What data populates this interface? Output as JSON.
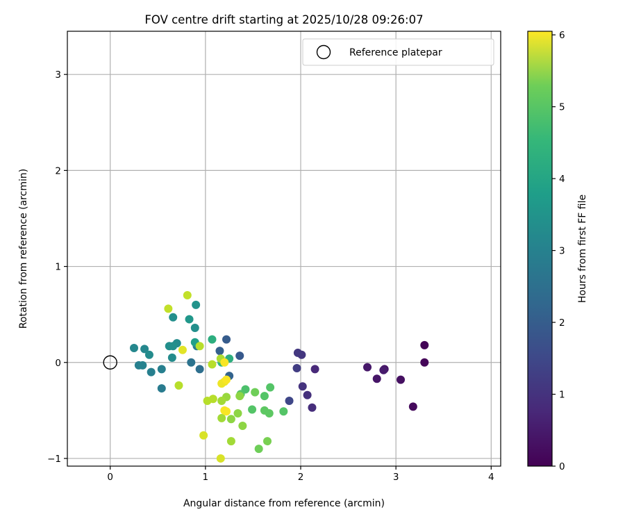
{
  "chart_data": {
    "type": "scatter",
    "title": "FOV centre drift starting at 2025/10/28 09:26:07",
    "xlabel": "Angular distance from reference (arcmin)",
    "ylabel": "Rotation from reference (arcmin)",
    "xlim": [
      -0.45,
      4.1
    ],
    "ylim": [
      -1.08,
      3.45
    ],
    "xticks": [
      0,
      1,
      2,
      3,
      4
    ],
    "yticks": [
      -1,
      0,
      1,
      2,
      3
    ],
    "xtick_labels": [
      "0",
      "1",
      "2",
      "3",
      "4"
    ],
    "ytick_labels": [
      "−1",
      "0",
      "1",
      "2",
      "3"
    ],
    "grid": true,
    "legend": {
      "location": "top-right",
      "label": "Reference platepar",
      "marker": "open-circle"
    },
    "reference_point": {
      "x": 0,
      "y": 0
    },
    "colorbar": {
      "label": "Hours from first FF file",
      "colormap": "viridis",
      "range": [
        0,
        6.05
      ],
      "ticks": [
        0,
        1,
        2,
        3,
        4,
        5,
        6
      ],
      "tick_labels": [
        "0",
        "1",
        "2",
        "3",
        "4",
        "5",
        "6"
      ]
    },
    "points": [
      {
        "x": 3.3,
        "y": 0.18,
        "c": 0.05
      },
      {
        "x": 3.3,
        "y": 0.0,
        "c": 0.1
      },
      {
        "x": 3.18,
        "y": -0.46,
        "c": 0.15
      },
      {
        "x": 3.05,
        "y": -0.18,
        "c": 0.25
      },
      {
        "x": 2.88,
        "y": -0.07,
        "c": 0.3
      },
      {
        "x": 2.8,
        "y": -0.17,
        "c": 0.35
      },
      {
        "x": 2.7,
        "y": -0.05,
        "c": 0.4
      },
      {
        "x": 2.87,
        "y": -0.08,
        "c": 0.45
      },
      {
        "x": 2.15,
        "y": -0.07,
        "c": 0.7
      },
      {
        "x": 2.12,
        "y": -0.47,
        "c": 0.8
      },
      {
        "x": 2.07,
        "y": -0.34,
        "c": 0.85
      },
      {
        "x": 2.02,
        "y": -0.25,
        "c": 0.9
      },
      {
        "x": 2.01,
        "y": 0.08,
        "c": 0.95
      },
      {
        "x": 1.97,
        "y": 0.1,
        "c": 1.0
      },
      {
        "x": 1.96,
        "y": -0.06,
        "c": 1.1
      },
      {
        "x": 1.88,
        "y": -0.4,
        "c": 1.3
      },
      {
        "x": 1.36,
        "y": 0.07,
        "c": 1.7
      },
      {
        "x": 1.22,
        "y": 0.24,
        "c": 1.75
      },
      {
        "x": 1.15,
        "y": 0.12,
        "c": 1.85
      },
      {
        "x": 1.25,
        "y": -0.14,
        "c": 1.9
      },
      {
        "x": 0.94,
        "y": -0.07,
        "c": 2.2
      },
      {
        "x": 0.85,
        "y": 0.0,
        "c": 2.3
      },
      {
        "x": 0.91,
        "y": 0.17,
        "c": 2.5
      },
      {
        "x": 0.54,
        "y": -0.27,
        "c": 2.5
      },
      {
        "x": 0.54,
        "y": -0.07,
        "c": 2.6
      },
      {
        "x": 0.43,
        "y": -0.1,
        "c": 2.6
      },
      {
        "x": 0.3,
        "y": -0.03,
        "c": 2.6
      },
      {
        "x": 0.34,
        "y": -0.03,
        "c": 2.7
      },
      {
        "x": 0.25,
        "y": 0.15,
        "c": 2.8
      },
      {
        "x": 0.36,
        "y": 0.14,
        "c": 2.8
      },
      {
        "x": 0.41,
        "y": 0.08,
        "c": 2.9
      },
      {
        "x": 0.65,
        "y": 0.05,
        "c": 2.9
      },
      {
        "x": 0.7,
        "y": 0.2,
        "c": 2.9
      },
      {
        "x": 0.62,
        "y": 0.17,
        "c": 3.0
      },
      {
        "x": 0.66,
        "y": 0.17,
        "c": 3.0
      },
      {
        "x": 0.66,
        "y": 0.47,
        "c": 3.0
      },
      {
        "x": 0.89,
        "y": 0.36,
        "c": 3.0
      },
      {
        "x": 0.9,
        "y": 0.6,
        "c": 3.1
      },
      {
        "x": 0.83,
        "y": 0.45,
        "c": 3.2
      },
      {
        "x": 0.89,
        "y": 0.21,
        "c": 3.4
      },
      {
        "x": 1.07,
        "y": 0.24,
        "c": 3.8
      },
      {
        "x": 1.25,
        "y": 0.04,
        "c": 3.8
      },
      {
        "x": 1.17,
        "y": 0.0,
        "c": 4.0
      },
      {
        "x": 1.42,
        "y": -0.28,
        "c": 4.3
      },
      {
        "x": 1.37,
        "y": -0.33,
        "c": 4.4
      },
      {
        "x": 1.49,
        "y": -0.49,
        "c": 4.4
      },
      {
        "x": 1.62,
        "y": -0.35,
        "c": 4.4
      },
      {
        "x": 1.68,
        "y": -0.26,
        "c": 4.4
      },
      {
        "x": 1.82,
        "y": -0.51,
        "c": 4.4
      },
      {
        "x": 1.62,
        "y": -0.5,
        "c": 4.5
      },
      {
        "x": 1.67,
        "y": -0.53,
        "c": 4.5
      },
      {
        "x": 1.52,
        "y": -0.31,
        "c": 4.7
      },
      {
        "x": 1.56,
        "y": -0.9,
        "c": 4.7
      },
      {
        "x": 1.65,
        "y": -0.82,
        "c": 4.8
      },
      {
        "x": 1.36,
        "y": -0.35,
        "c": 5.0
      },
      {
        "x": 1.34,
        "y": -0.53,
        "c": 5.0
      },
      {
        "x": 1.39,
        "y": -0.66,
        "c": 5.0
      },
      {
        "x": 1.27,
        "y": -0.59,
        "c": 5.0
      },
      {
        "x": 1.22,
        "y": -0.36,
        "c": 5.1
      },
      {
        "x": 1.17,
        "y": -0.4,
        "c": 5.2
      },
      {
        "x": 1.17,
        "y": -0.58,
        "c": 5.2
      },
      {
        "x": 1.27,
        "y": -0.82,
        "c": 5.2
      },
      {
        "x": 1.16,
        "y": 0.04,
        "c": 5.3
      },
      {
        "x": 1.08,
        "y": -0.38,
        "c": 5.4
      },
      {
        "x": 1.02,
        "y": -0.4,
        "c": 5.4
      },
      {
        "x": 1.07,
        "y": -0.02,
        "c": 5.4
      },
      {
        "x": 0.94,
        "y": 0.17,
        "c": 5.4
      },
      {
        "x": 0.72,
        "y": -0.24,
        "c": 5.4
      },
      {
        "x": 0.61,
        "y": 0.56,
        "c": 5.5
      },
      {
        "x": 0.81,
        "y": 0.7,
        "c": 5.5
      },
      {
        "x": 0.98,
        "y": -0.76,
        "c": 5.7
      },
      {
        "x": 1.16,
        "y": -1.0,
        "c": 5.7
      },
      {
        "x": 0.76,
        "y": 0.13,
        "c": 5.8
      },
      {
        "x": 1.17,
        "y": -0.22,
        "c": 5.9
      },
      {
        "x": 1.2,
        "y": -0.2,
        "c": 5.9
      },
      {
        "x": 1.22,
        "y": -0.18,
        "c": 6.0
      },
      {
        "x": 1.2,
        "y": -0.5,
        "c": 6.0
      },
      {
        "x": 1.22,
        "y": -0.51,
        "c": 6.0
      },
      {
        "x": 1.2,
        "y": 0.0,
        "c": 6.0
      }
    ]
  }
}
